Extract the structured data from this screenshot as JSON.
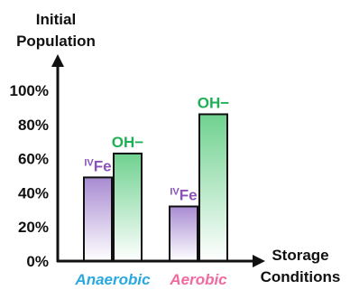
{
  "chart_data": {
    "type": "bar",
    "ylabel_line1": "Initial",
    "ylabel_line2": "Population",
    "xlabel_line1": "Storage",
    "xlabel_line2": "Conditions",
    "ylim": [
      0,
      100
    ],
    "yticks": [
      "0%",
      "20%",
      "40%",
      "60%",
      "80%",
      "100%"
    ],
    "categories": [
      {
        "label": "Anaerobic",
        "color": "#29a9e0"
      },
      {
        "label": "Aerobic",
        "color": "#f06aa0"
      }
    ],
    "series": [
      {
        "label_sup": "IV",
        "label_main": "Fe",
        "label_color": "#8a52b8",
        "fill_top": "#a88bd2",
        "fill_bottom": "#ffffff",
        "stroke": "#111111",
        "values": [
          49,
          32
        ]
      },
      {
        "label_main": "OH",
        "label_suffix": "−",
        "label_color": "#1faf55",
        "fill_top": "#6fd18f",
        "fill_bottom": "#ffffff",
        "stroke": "#111111",
        "values": [
          63,
          86
        ]
      }
    ]
  }
}
